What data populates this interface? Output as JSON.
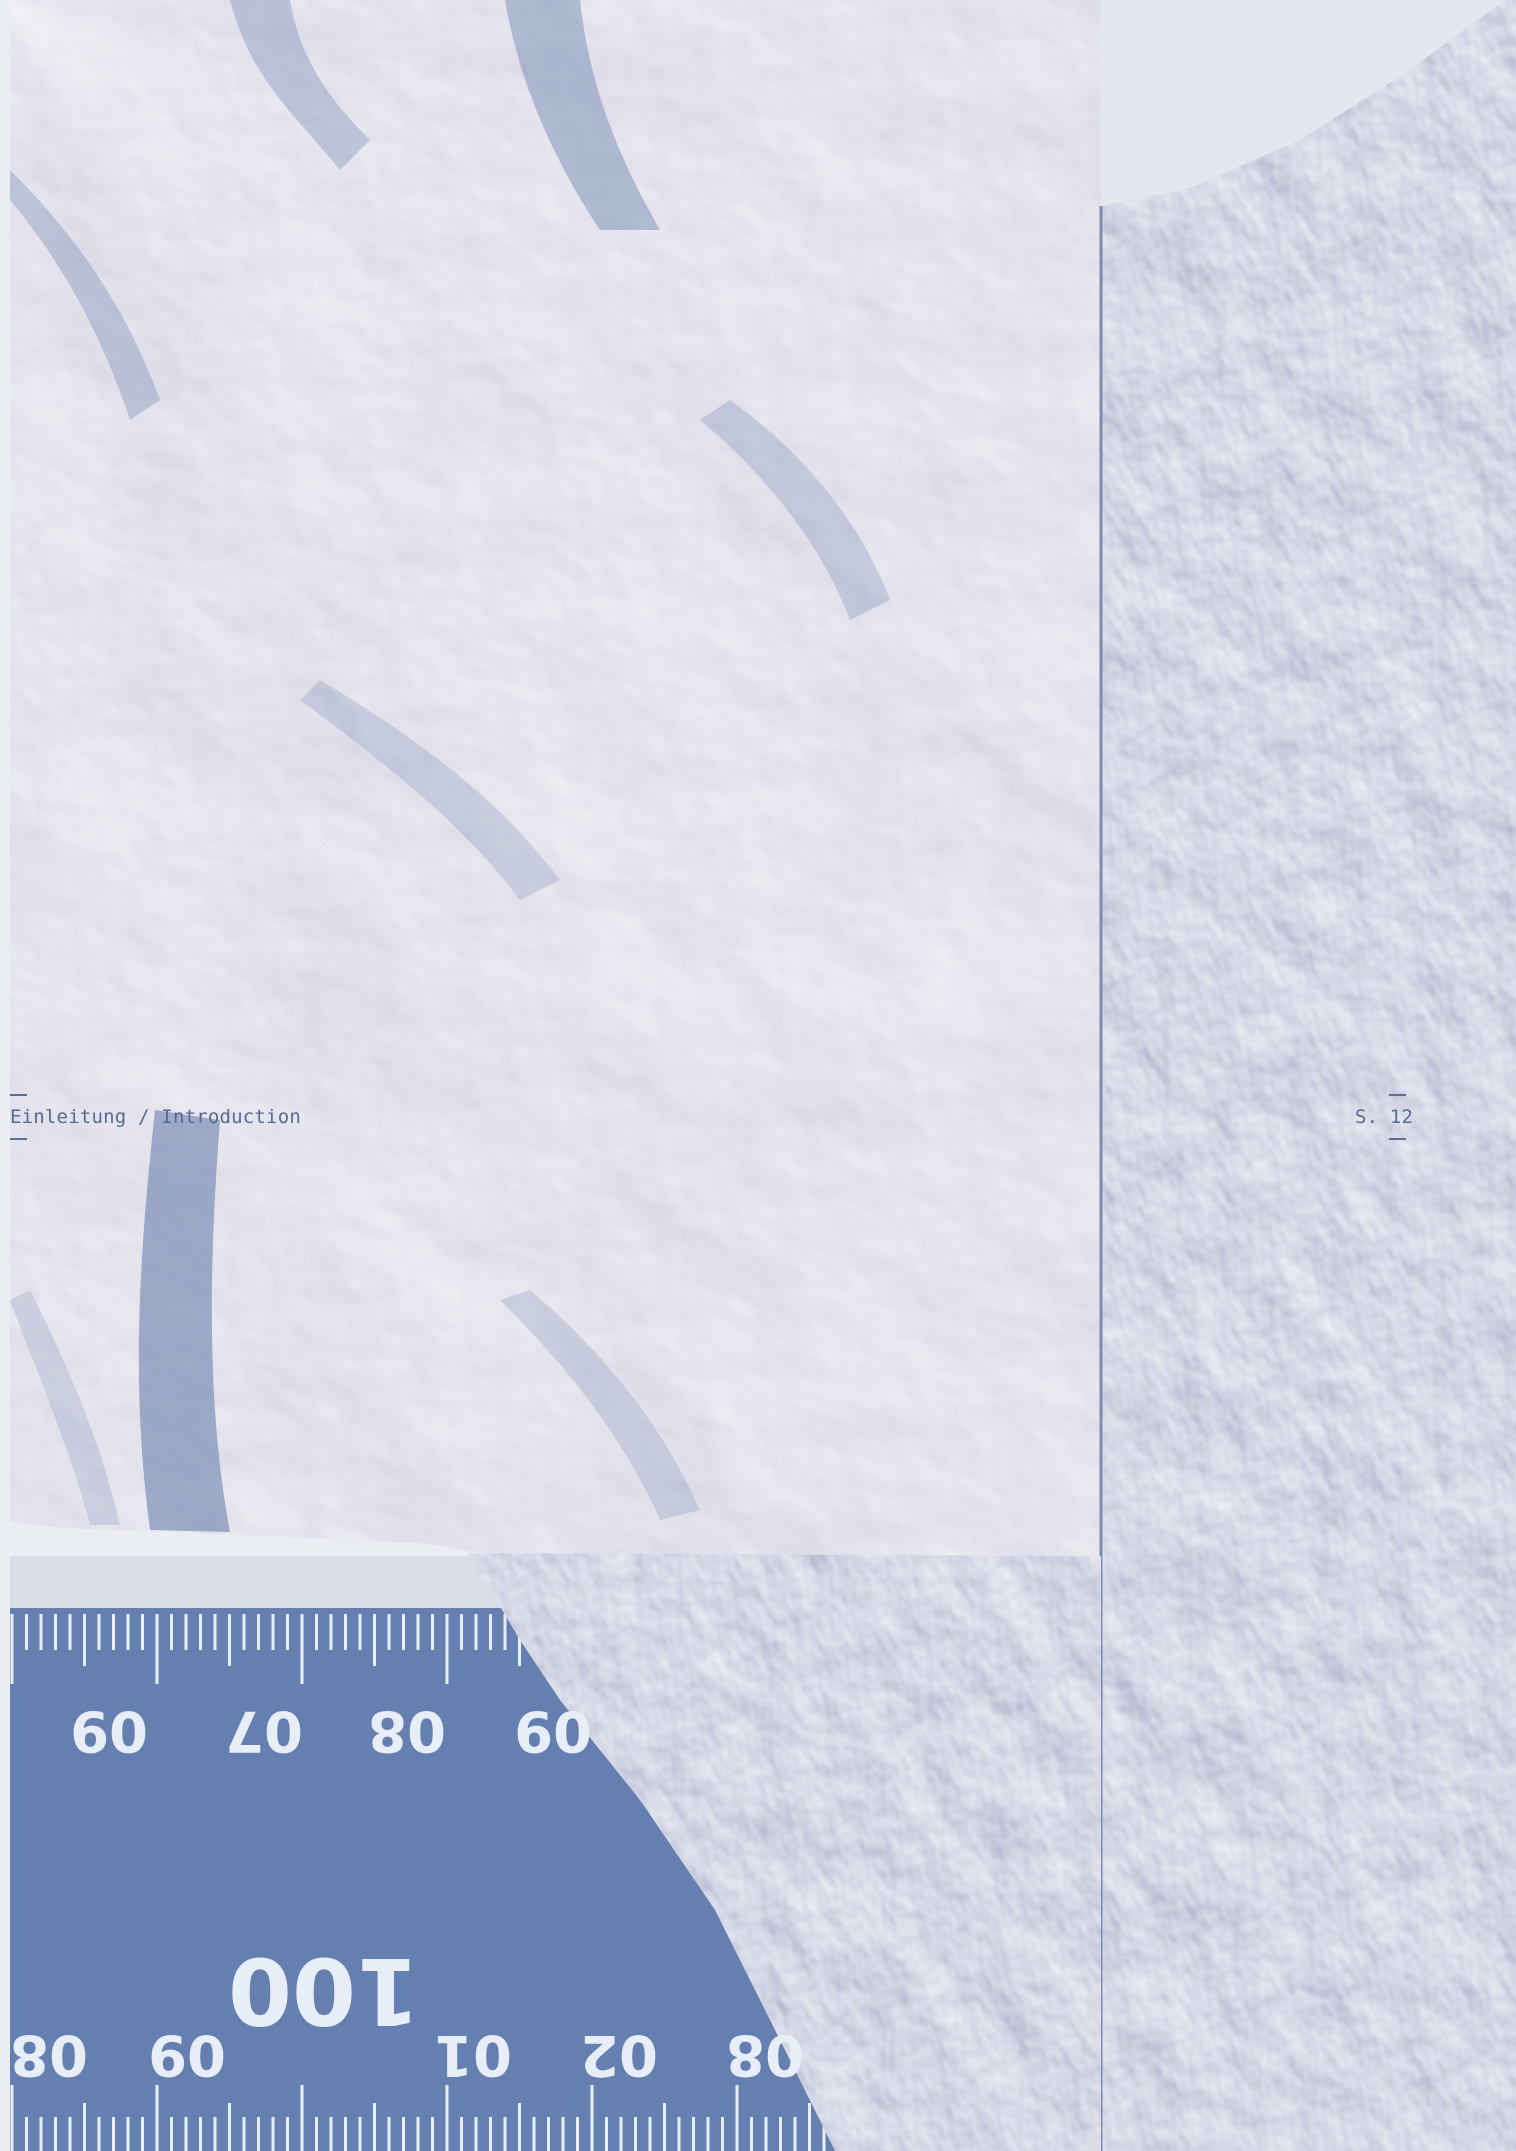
{
  "footer": {
    "section_label": "Einleitung / Introduction",
    "page_label": "S. 12"
  },
  "ruler": {
    "top_row_digits": [
      "09",
      "07",
      "08",
      "09"
    ],
    "bottom_row_digits": [
      "08",
      "09",
      "01",
      "02",
      "08"
    ],
    "large_number": "100"
  },
  "colors": {
    "duotone_blue": "#5e78a8",
    "paper_white": "#ffffff",
    "ruler_mark_white": "#e8eef8",
    "label_text": "#566a92"
  }
}
